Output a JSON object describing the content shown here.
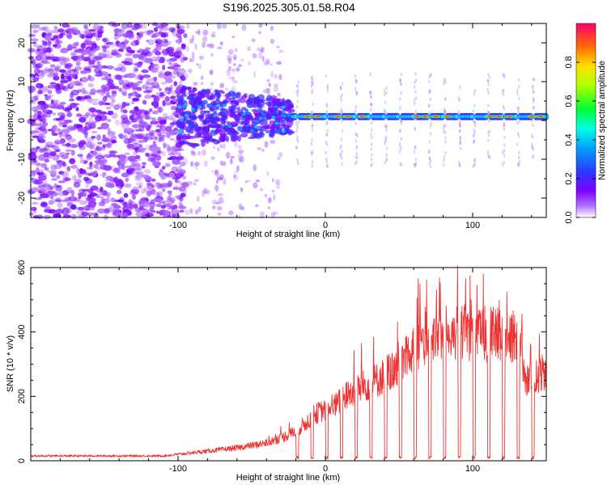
{
  "title": "S196.2025.305.01.58.R04",
  "chart_data": [
    {
      "type": "heatmap",
      "name": "spectrogram",
      "xlabel": "Height of straight line (km)",
      "ylabel": "Frequency (Hz)",
      "xlim": [
        -200,
        150
      ],
      "ylim": [
        -25,
        25
      ],
      "xticks": [
        -100,
        0,
        100
      ],
      "yticks": [
        -20,
        -10,
        0,
        10,
        20
      ],
      "colorbar": {
        "label": "Normalized spectral amplitude",
        "range": [
          0,
          1
        ],
        "ticks": [
          0.0,
          0.2,
          0.4,
          0.6,
          0.8
        ],
        "tick_labels": [
          "0.0",
          "0.2",
          "0.4",
          "0.6",
          "0.8"
        ]
      },
      "features": {
        "noise_region_km": [
          -200,
          -100
        ],
        "transition_region_km": [
          -100,
          -22
        ],
        "line_region_km": [
          -22,
          150
        ],
        "line_frequency_hz": 1,
        "gap_spacing_km": 10
      }
    },
    {
      "type": "line",
      "name": "snr",
      "xlabel": "Height of straight line (km)",
      "ylabel": "SNR (10 * v/v)",
      "xlim": [
        -200,
        150
      ],
      "ylim": [
        0,
        600
      ],
      "xticks": [
        -100,
        0,
        100
      ],
      "yticks": [
        0,
        200,
        400,
        600
      ],
      "color": "#ee3333",
      "trend_x": [
        -200,
        -110,
        -100,
        -80,
        -60,
        -40,
        -25,
        -15,
        -5,
        5,
        15,
        25,
        35,
        45,
        55,
        65,
        75,
        85,
        95,
        105,
        115,
        125,
        132,
        136,
        150
      ],
      "trend_y": [
        15,
        15,
        20,
        30,
        40,
        55,
        80,
        110,
        150,
        165,
        205,
        230,
        250,
        280,
        330,
        370,
        390,
        395,
        400,
        395,
        390,
        385,
        380,
        250,
        275
      ],
      "dropouts_km": [
        -19,
        -9,
        1,
        11,
        21,
        31,
        41,
        51,
        61,
        71,
        81,
        91,
        101,
        111,
        121,
        131,
        141
      ],
      "spike_range": [
        0,
        605
      ]
    }
  ]
}
